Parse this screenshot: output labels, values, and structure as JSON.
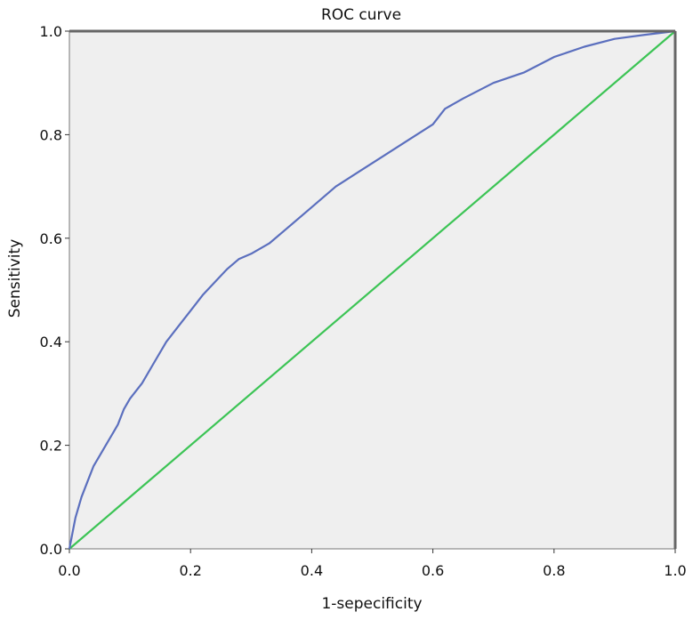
{
  "chart_data": {
    "type": "line",
    "title": "ROC curve",
    "xlabel": "1-sepecificity",
    "ylabel": "Sensitivity",
    "xlim": [
      0,
      1
    ],
    "ylim": [
      0,
      1
    ],
    "x_ticks": [
      "0.0",
      "0.2",
      "0.4",
      "0.6",
      "0.8",
      "1.0"
    ],
    "y_ticks": [
      "0.0",
      "0.2",
      "0.4",
      "0.6",
      "0.8",
      "1.0"
    ],
    "grid": false,
    "plot_background": "#efefef",
    "series": [
      {
        "color": "#5b6fbe",
        "x": [
          0.0,
          0.005,
          0.01,
          0.02,
          0.03,
          0.04,
          0.05,
          0.06,
          0.07,
          0.08,
          0.09,
          0.1,
          0.12,
          0.14,
          0.16,
          0.18,
          0.2,
          0.22,
          0.24,
          0.26,
          0.28,
          0.3,
          0.33,
          0.36,
          0.4,
          0.44,
          0.48,
          0.52,
          0.56,
          0.6,
          0.62,
          0.65,
          0.7,
          0.75,
          0.8,
          0.85,
          0.9,
          0.95,
          1.0
        ],
        "values": [
          0.0,
          0.03,
          0.06,
          0.1,
          0.13,
          0.16,
          0.18,
          0.2,
          0.22,
          0.24,
          0.27,
          0.29,
          0.32,
          0.36,
          0.4,
          0.43,
          0.46,
          0.49,
          0.515,
          0.54,
          0.56,
          0.57,
          0.59,
          0.62,
          0.66,
          0.7,
          0.73,
          0.76,
          0.79,
          0.82,
          0.85,
          0.87,
          0.9,
          0.92,
          0.95,
          0.97,
          0.985,
          0.993,
          1.0
        ]
      },
      {
        "color": "#3cc455",
        "x": [
          0,
          1
        ],
        "values": [
          0,
          1
        ]
      }
    ]
  }
}
